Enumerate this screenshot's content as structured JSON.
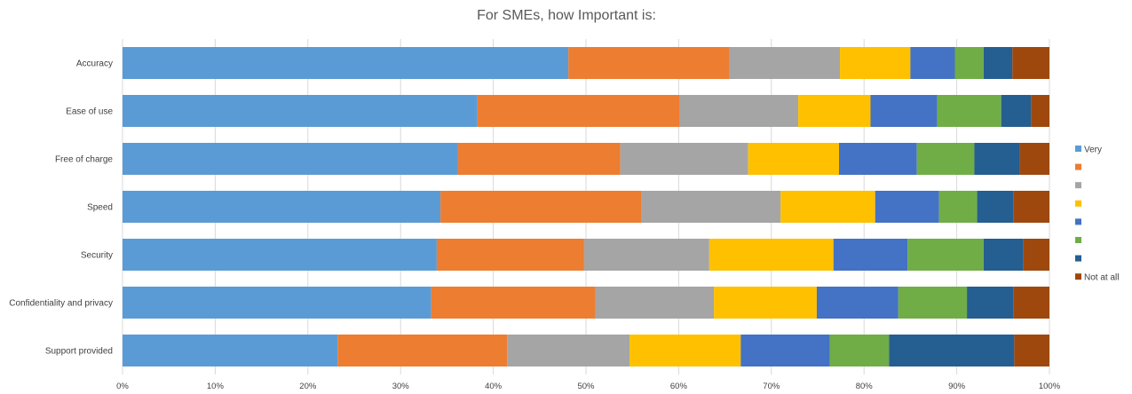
{
  "chart_data": {
    "type": "bar",
    "orientation": "horizontal",
    "stacked": "percent",
    "title": "For SMEs, how Important is:",
    "categories": [
      "Accuracy",
      "Ease of use",
      "Free of charge",
      "Speed",
      "Security",
      "Confidentiality and privacy",
      "Support provided"
    ],
    "series": [
      {
        "name": "Very",
        "color": "#5B9BD5",
        "values": [
          48.1,
          38.3,
          36.2,
          34.3,
          33.9,
          33.3,
          23.2
        ]
      },
      {
        "name": "",
        "color": "#ED7D31",
        "values": [
          17.4,
          21.8,
          17.5,
          21.7,
          15.9,
          17.7,
          18.3
        ]
      },
      {
        "name": "",
        "color": "#A5A5A5",
        "values": [
          11.9,
          12.8,
          13.8,
          15.0,
          13.5,
          12.8,
          13.2
        ]
      },
      {
        "name": "",
        "color": "#FFC000",
        "values": [
          7.6,
          7.8,
          9.8,
          10.2,
          13.4,
          11.1,
          12.0
        ]
      },
      {
        "name": "",
        "color": "#4472C4",
        "values": [
          4.8,
          7.2,
          8.4,
          6.9,
          8.0,
          8.8,
          9.6
        ]
      },
      {
        "name": "",
        "color": "#70AD47",
        "values": [
          3.1,
          6.9,
          6.2,
          4.1,
          8.2,
          7.4,
          6.4
        ]
      },
      {
        "name": "",
        "color": "#255E91",
        "values": [
          3.1,
          3.2,
          4.9,
          3.9,
          4.3,
          5.0,
          13.5
        ]
      },
      {
        "name": "Not at all",
        "color": "#9E480E",
        "values": [
          4.0,
          2.0,
          3.2,
          3.9,
          2.8,
          3.9,
          3.8
        ]
      }
    ],
    "xlim": [
      0,
      100
    ],
    "x_ticks": [
      "0%",
      "10%",
      "20%",
      "30%",
      "40%",
      "50%",
      "60%",
      "70%",
      "80%",
      "90%",
      "100%"
    ],
    "grid": true,
    "legend_position": "right"
  }
}
